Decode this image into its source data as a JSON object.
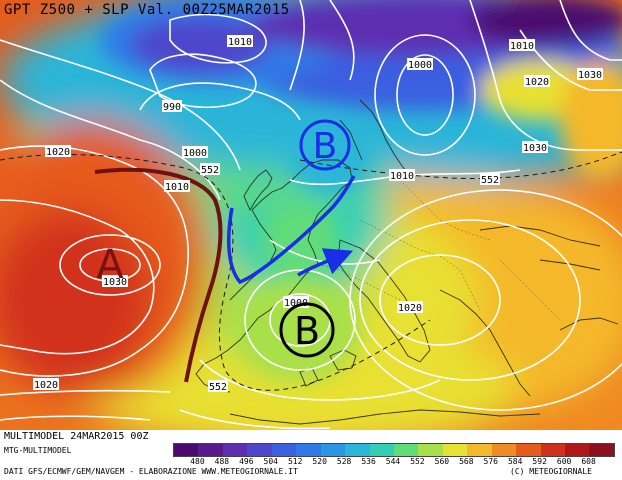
{
  "title": "GPT Z500 + SLP Val. 00Z25MAR2015",
  "model_run": "MULTIMODEL 24MAR2015 00Z",
  "model_tag": "MTG-MULTIMODEL",
  "data_sources": "DATI GFS/ECMWF/GEM/NAVGEM - ELABORAZIONE WWW.METEOGIORNALE.IT",
  "copyright": "(C) METEOGIORNALE",
  "colorbar": {
    "values": [
      "480",
      "488",
      "496",
      "504",
      "512",
      "520",
      "528",
      "536",
      "544",
      "552",
      "560",
      "568",
      "576",
      "584",
      "592",
      "600",
      "608"
    ],
    "colors": [
      "#4b0a6e",
      "#5a1a8c",
      "#5d2fb0",
      "#4e46cc",
      "#3a5fe0",
      "#2f7ae8",
      "#2a96e4",
      "#2bb5d8",
      "#33cfb5",
      "#60dc7a",
      "#a8e04a",
      "#e8e032",
      "#f4b82c",
      "#f08a22",
      "#e65a1c",
      "#d2301a",
      "#b01818",
      "#8c1020"
    ]
  },
  "highs": [
    {
      "letter": "A"
    }
  ],
  "lows": [
    {
      "letter": "B"
    },
    {
      "letter": "B"
    }
  ],
  "isobar_labels": [
    "1010",
    "1000",
    "990",
    "1000",
    "1020",
    "1030",
    "1030",
    "1020",
    "1010",
    "1010",
    "1010",
    "552",
    "552",
    "552",
    "1030",
    "1020",
    "1000",
    "1020"
  ]
}
